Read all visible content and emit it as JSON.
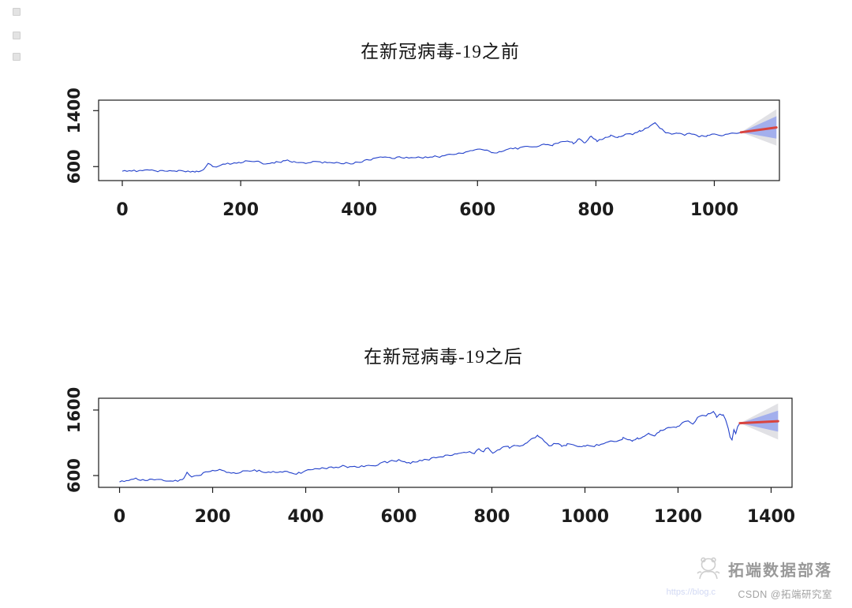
{
  "chart_data": [
    {
      "type": "line",
      "title": "在新冠病毒-19之前",
      "xlabel": "",
      "ylabel": "",
      "x_ticks": [
        0,
        200,
        400,
        600,
        800,
        1000
      ],
      "y_ticks": [
        600,
        1400
      ],
      "xlim": [
        -40,
        1110
      ],
      "ylim": [
        400,
        1550
      ],
      "grid": false,
      "legend": "none",
      "series_color": "#2341cb",
      "noise_amplitude": 30,
      "anchors": [
        [
          0,
          520
        ],
        [
          30,
          540
        ],
        [
          60,
          545
        ],
        [
          95,
          535
        ],
        [
          125,
          530
        ],
        [
          138,
          545
        ],
        [
          145,
          640
        ],
        [
          155,
          600
        ],
        [
          170,
          620
        ],
        [
          185,
          645
        ],
        [
          200,
          665
        ],
        [
          215,
          690
        ],
        [
          230,
          665
        ],
        [
          245,
          635
        ],
        [
          260,
          665
        ],
        [
          275,
          685
        ],
        [
          290,
          675
        ],
        [
          310,
          660
        ],
        [
          330,
          665
        ],
        [
          350,
          660
        ],
        [
          370,
          650
        ],
        [
          390,
          645
        ],
        [
          405,
          680
        ],
        [
          420,
          710
        ],
        [
          440,
          730
        ],
        [
          460,
          720
        ],
        [
          480,
          735
        ],
        [
          500,
          730
        ],
        [
          520,
          740
        ],
        [
          540,
          750
        ],
        [
          560,
          775
        ],
        [
          580,
          810
        ],
        [
          600,
          845
        ],
        [
          612,
          820
        ],
        [
          625,
          805
        ],
        [
          640,
          825
        ],
        [
          660,
          850
        ],
        [
          680,
          870
        ],
        [
          700,
          900
        ],
        [
          715,
          930
        ],
        [
          728,
          915
        ],
        [
          740,
          950
        ],
        [
          752,
          985
        ],
        [
          762,
          930
        ],
        [
          772,
          1005
        ],
        [
          782,
          945
        ],
        [
          792,
          1030
        ],
        [
          802,
          960
        ],
        [
          812,
          1000
        ],
        [
          825,
          1040
        ],
        [
          838,
          1025
        ],
        [
          850,
          1055
        ],
        [
          862,
          1045
        ],
        [
          875,
          1110
        ],
        [
          888,
          1160
        ],
        [
          900,
          1210
        ],
        [
          908,
          1160
        ],
        [
          918,
          1100
        ],
        [
          928,
          1050
        ],
        [
          938,
          1090
        ],
        [
          950,
          1060
        ],
        [
          962,
          1075
        ],
        [
          975,
          1040
        ],
        [
          988,
          1030
        ],
        [
          1000,
          1060
        ],
        [
          1015,
          1040
        ],
        [
          1030,
          1070
        ],
        [
          1045,
          1090
        ]
      ],
      "forecast": {
        "mean_color": "#d9443f",
        "band_inner_color": "#98a6ee",
        "band_outer_color": "#d9d9de",
        "x_start": 1045,
        "x_end": 1105,
        "mean_start": 1090,
        "mean_end": 1160,
        "inner_end": [
          1000,
          1320
        ],
        "outer_end": [
          900,
          1420
        ]
      }
    },
    {
      "type": "line",
      "title": "在新冠病毒-19之后",
      "xlabel": "",
      "ylabel": "",
      "x_ticks": [
        0,
        200,
        400,
        600,
        800,
        1000,
        1200,
        1400
      ],
      "y_ticks": [
        600,
        1600
      ],
      "xlim": [
        -45,
        1445
      ],
      "ylim": [
        420,
        1780
      ],
      "grid": false,
      "legend": "none",
      "series_color": "#2341cb",
      "noise_amplitude": 38,
      "anchors": [
        [
          0,
          520
        ],
        [
          30,
          540
        ],
        [
          60,
          545
        ],
        [
          95,
          535
        ],
        [
          125,
          530
        ],
        [
          138,
          545
        ],
        [
          145,
          640
        ],
        [
          155,
          600
        ],
        [
          170,
          620
        ],
        [
          185,
          645
        ],
        [
          200,
          665
        ],
        [
          215,
          690
        ],
        [
          230,
          665
        ],
        [
          245,
          635
        ],
        [
          260,
          665
        ],
        [
          275,
          685
        ],
        [
          290,
          675
        ],
        [
          310,
          660
        ],
        [
          330,
          665
        ],
        [
          350,
          660
        ],
        [
          370,
          650
        ],
        [
          390,
          645
        ],
        [
          405,
          680
        ],
        [
          420,
          710
        ],
        [
          440,
          730
        ],
        [
          460,
          720
        ],
        [
          480,
          735
        ],
        [
          500,
          730
        ],
        [
          520,
          740
        ],
        [
          540,
          750
        ],
        [
          560,
          775
        ],
        [
          580,
          810
        ],
        [
          600,
          845
        ],
        [
          612,
          820
        ],
        [
          625,
          805
        ],
        [
          640,
          825
        ],
        [
          660,
          850
        ],
        [
          680,
          870
        ],
        [
          700,
          900
        ],
        [
          715,
          930
        ],
        [
          728,
          915
        ],
        [
          740,
          950
        ],
        [
          752,
          985
        ],
        [
          762,
          930
        ],
        [
          772,
          1005
        ],
        [
          782,
          945
        ],
        [
          792,
          1030
        ],
        [
          802,
          960
        ],
        [
          812,
          1000
        ],
        [
          825,
          1040
        ],
        [
          838,
          1025
        ],
        [
          850,
          1055
        ],
        [
          862,
          1045
        ],
        [
          875,
          1110
        ],
        [
          888,
          1160
        ],
        [
          900,
          1210
        ],
        [
          908,
          1160
        ],
        [
          918,
          1100
        ],
        [
          928,
          1050
        ],
        [
          938,
          1090
        ],
        [
          950,
          1060
        ],
        [
          962,
          1075
        ],
        [
          975,
          1040
        ],
        [
          988,
          1030
        ],
        [
          1000,
          1060
        ],
        [
          1015,
          1040
        ],
        [
          1030,
          1070
        ],
        [
          1045,
          1090
        ],
        [
          1058,
          1115
        ],
        [
          1070,
          1140
        ],
        [
          1082,
          1180
        ],
        [
          1092,
          1155
        ],
        [
          1103,
          1125
        ],
        [
          1115,
          1170
        ],
        [
          1127,
          1210
        ],
        [
          1139,
          1240
        ],
        [
          1150,
          1220
        ],
        [
          1162,
          1270
        ],
        [
          1174,
          1310
        ],
        [
          1186,
          1350
        ],
        [
          1198,
          1330
        ],
        [
          1210,
          1395
        ],
        [
          1222,
          1435
        ],
        [
          1232,
          1405
        ],
        [
          1242,
          1475
        ],
        [
          1252,
          1525
        ],
        [
          1260,
          1495
        ],
        [
          1268,
          1550
        ],
        [
          1276,
          1565
        ],
        [
          1283,
          1505
        ],
        [
          1290,
          1560
        ],
        [
          1297,
          1520
        ],
        [
          1303,
          1430
        ],
        [
          1308,
          1330
        ],
        [
          1312,
          1180
        ],
        [
          1316,
          1150
        ],
        [
          1320,
          1290
        ],
        [
          1324,
          1240
        ],
        [
          1328,
          1330
        ],
        [
          1333,
          1400
        ]
      ],
      "forecast": {
        "mean_color": "#d9443f",
        "band_inner_color": "#98a6ee",
        "band_outer_color": "#d9d9de",
        "x_start": 1333,
        "x_end": 1415,
        "mean_start": 1400,
        "mean_end": 1430,
        "inner_end": [
          1270,
          1590
        ],
        "outer_end": [
          1150,
          1700
        ]
      }
    }
  ],
  "watermark": {
    "brand": "拓端数据部落",
    "credit": "CSDN @拓端研究室",
    "link_fragment": "https://blog.c"
  }
}
